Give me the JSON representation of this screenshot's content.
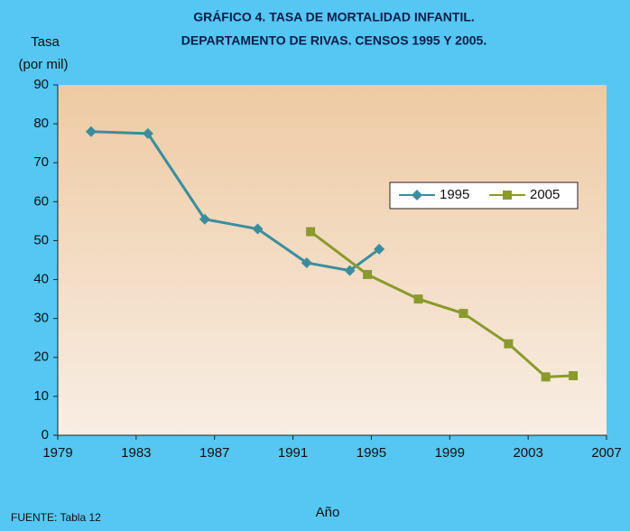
{
  "chart_data": {
    "type": "line",
    "title": [
      "GRÁFICO 4. TASA DE MORTALIDAD INFANTIL.",
      "DEPARTAMENTO DE RIVAS. CENSOS 1995 Y 2005."
    ],
    "y_label": [
      "Tasa",
      "(por mil)"
    ],
    "x_label": "Año",
    "source": "FUENTE: Tabla 12",
    "series": [
      {
        "name": "1995",
        "color": "#3b8d9e",
        "marker": "diamond",
        "x": [
          1980.7,
          1983.6,
          1986.5,
          1989.2,
          1991.7,
          1993.9,
          1995.4
        ],
        "values": [
          78,
          77.5,
          55.5,
          53,
          44.3,
          42.3,
          47.8
        ]
      },
      {
        "name": "2005",
        "color": "#8a9a2c",
        "marker": "square",
        "x": [
          1991.9,
          1994.8,
          1997.4,
          1999.7,
          2002.0,
          2003.9,
          2005.3
        ],
        "values": [
          52.3,
          41.3,
          35,
          31.3,
          23.5,
          15,
          15.3
        ]
      }
    ],
    "xlim": [
      1979,
      2007
    ],
    "xticks": [
      1979,
      1983,
      1987,
      1991,
      1995,
      1999,
      2003,
      2007
    ],
    "ylim": [
      0,
      90
    ],
    "yticks": [
      0,
      10,
      20,
      30,
      40,
      50,
      60,
      70,
      80,
      90
    ]
  }
}
